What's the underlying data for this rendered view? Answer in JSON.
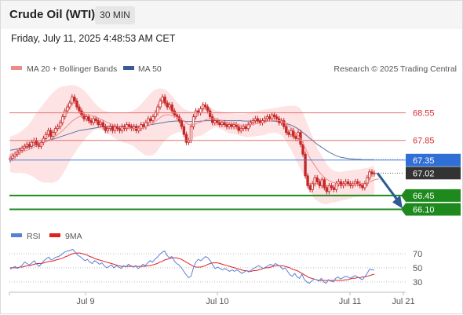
{
  "header": {
    "instrument": "Crude Oil (WTI)",
    "timeframe": "30 MIN",
    "datetime": "Friday, July 11, 2025 4:48:53 AM CET"
  },
  "legend": {
    "ma20": "MA 20 + Bollinger Bands",
    "ma50": "MA 50",
    "copyright": "Research © 2025 Trading Central",
    "rsi": "RSI",
    "ma9": "9MA"
  },
  "colors": {
    "bollinger_fill": "#fde3e3",
    "ma20": "#f08a8a",
    "ma50": "#5a73a8",
    "candle": "#c62828",
    "resistance": "#e57373",
    "pivot": "#4a7fd9",
    "support": "#1e8a1e",
    "last_price": "#333333",
    "arrow": "#2d5b94",
    "rsi": "#5b7fd6",
    "rsi_ma": "#e02020"
  },
  "chart_data": {
    "type": "candlestick",
    "x_labels": [
      "Jul 9",
      "Jul 10",
      "Jul 11",
      "Jul 21"
    ],
    "ylim": [
      65.77,
      69.4
    ],
    "levels": [
      {
        "value": 68.55,
        "label": "68.55",
        "kind": "resistance"
      },
      {
        "value": 67.85,
        "label": "67.85",
        "kind": "resistance"
      },
      {
        "value": 67.35,
        "label": "67.35",
        "kind": "pivot"
      },
      {
        "value": 67.02,
        "label": "67.02",
        "kind": "last"
      },
      {
        "value": 66.45,
        "label": "66.45",
        "kind": "support"
      },
      {
        "value": 66.1,
        "label": "66.10",
        "kind": "support"
      }
    ],
    "close": [
      67.4,
      67.45,
      67.5,
      67.55,
      67.6,
      67.65,
      67.7,
      67.75,
      67.7,
      67.8,
      67.85,
      67.75,
      67.7,
      67.8,
      67.9,
      68.0,
      68.1,
      67.95,
      68.05,
      68.15,
      68.2,
      68.3,
      68.45,
      68.6,
      68.7,
      68.8,
      68.95,
      68.85,
      68.7,
      68.6,
      68.5,
      68.4,
      68.45,
      68.35,
      68.3,
      68.4,
      68.35,
      68.25,
      68.3,
      68.2,
      68.1,
      68.15,
      68.2,
      68.1,
      68.2,
      68.15,
      68.1,
      68.2,
      68.15,
      68.25,
      68.2,
      68.15,
      68.2,
      68.1,
      68.15,
      68.25,
      68.2,
      68.3,
      68.4,
      68.35,
      68.45,
      68.55,
      68.7,
      68.85,
      68.95,
      68.8,
      68.7,
      68.75,
      68.6,
      68.5,
      68.45,
      68.35,
      68.2,
      68.0,
      67.8,
      67.85,
      68.2,
      68.45,
      68.6,
      68.55,
      68.65,
      68.75,
      68.7,
      68.6,
      68.45,
      68.3,
      68.35,
      68.3,
      68.25,
      68.3,
      68.25,
      68.2,
      68.25,
      68.2,
      68.25,
      68.2,
      68.1,
      68.15,
      68.2,
      68.15,
      68.25,
      68.3,
      68.35,
      68.4,
      68.35,
      68.3,
      68.35,
      68.4,
      68.45,
      68.4,
      68.5,
      68.45,
      68.4,
      68.3,
      68.35,
      68.2,
      68.05,
      68.0,
      68.1,
      67.95,
      67.9,
      68.05,
      67.75,
      67.5,
      66.95,
      66.7,
      66.6,
      66.75,
      66.9,
      66.8,
      66.7,
      66.85,
      66.65,
      66.55,
      66.7,
      66.65,
      66.6,
      66.75,
      66.8,
      66.7,
      66.75,
      66.8,
      66.75,
      66.7,
      66.75,
      66.8,
      66.75,
      66.7,
      66.65,
      66.75,
      66.9,
      67.05,
      67.0,
      67.02
    ],
    "ma20": [
      67.5,
      67.5,
      67.51,
      67.52,
      67.54,
      67.56,
      67.58,
      67.6,
      67.62,
      67.65,
      67.68,
      67.71,
      67.73,
      67.75,
      67.78,
      67.82,
      67.86,
      67.88,
      67.92,
      67.96,
      68.0,
      68.05,
      68.1,
      68.16,
      68.22,
      68.28,
      68.34,
      68.38,
      68.42,
      68.45,
      68.47,
      68.48,
      68.49,
      68.49,
      68.48,
      68.47,
      68.45,
      68.42,
      68.39,
      68.36,
      68.33,
      68.3,
      68.28,
      68.25,
      68.23,
      68.21,
      68.2,
      68.18,
      68.17,
      68.17,
      68.16,
      68.16,
      68.16,
      68.15,
      68.15,
      68.16,
      68.17,
      68.19,
      68.22,
      68.25,
      68.29,
      68.33,
      68.38,
      68.43,
      68.47,
      68.49,
      68.5,
      68.5,
      68.48,
      68.46,
      68.44,
      68.41,
      68.38,
      68.34,
      68.29,
      68.25,
      68.24,
      68.25,
      68.27,
      68.29,
      68.31,
      68.34,
      68.37,
      68.39,
      68.4,
      68.4,
      68.4,
      68.39,
      68.37,
      68.35,
      68.33,
      68.31,
      68.29,
      68.28,
      68.27,
      68.26,
      68.25,
      68.24,
      68.24,
      68.23,
      68.24,
      68.25,
      68.26,
      68.27,
      68.28,
      68.29,
      68.3,
      68.31,
      68.33,
      68.34,
      68.35,
      68.36,
      68.36,
      68.35,
      68.34,
      68.31,
      68.27,
      68.22,
      68.17,
      68.11,
      68.04,
      67.97,
      67.88,
      67.78,
      67.65,
      67.52,
      67.4,
      67.3,
      67.21,
      67.12,
      67.04,
      66.97,
      66.91,
      66.86,
      66.83,
      66.8,
      66.78,
      66.76,
      66.74,
      66.72,
      66.71,
      66.71,
      66.72,
      66.73,
      66.74,
      66.74,
      66.74,
      66.75,
      66.76,
      66.77,
      66.78,
      66.79,
      66.82,
      66.85,
      66.86,
      66.87
    ],
    "bb_upper": [
      67.95,
      67.97,
      67.99,
      68.02,
      68.05,
      68.1,
      68.15,
      68.2,
      68.27,
      68.35,
      68.45,
      68.55,
      68.63,
      68.7,
      68.78,
      68.86,
      68.93,
      69.0,
      69.06,
      69.12,
      69.17,
      69.2,
      69.22,
      69.23,
      69.24,
      69.25,
      69.25,
      69.25,
      69.23,
      69.2,
      69.17,
      69.12,
      69.06,
      68.99,
      68.92,
      68.84,
      68.77,
      68.71,
      68.66,
      68.62,
      68.6,
      68.58,
      68.57,
      68.56,
      68.56,
      68.55,
      68.55,
      68.55,
      68.55,
      68.56,
      68.57,
      68.59,
      68.62,
      68.66,
      68.71,
      68.77,
      68.84,
      68.91,
      68.98,
      69.04,
      69.1,
      69.14,
      69.16,
      69.17,
      69.16,
      69.14,
      69.1,
      69.04,
      68.97,
      68.9,
      68.83,
      68.76,
      68.7,
      68.65,
      68.62,
      68.6,
      68.59,
      68.59,
      68.6,
      68.62,
      68.65,
      68.68,
      68.7,
      68.7,
      68.68,
      68.65,
      68.62,
      68.6,
      68.59,
      68.58,
      68.57,
      68.56,
      68.55,
      68.54,
      68.53,
      68.52,
      68.52,
      68.52,
      68.52,
      68.53,
      68.54,
      68.56,
      68.57,
      68.58,
      68.6,
      68.61,
      68.62,
      68.63,
      68.64,
      68.65,
      68.66,
      68.67,
      68.68,
      68.69,
      68.7,
      68.71,
      68.72,
      68.73,
      68.73,
      68.73,
      68.72,
      68.7,
      68.65,
      68.55,
      68.4,
      68.25,
      68.1,
      67.95,
      67.8,
      67.66,
      67.55,
      67.45,
      67.35,
      67.25,
      67.17,
      67.12,
      67.08,
      67.06,
      67.05,
      67.05,
      67.06,
      67.07,
      67.08,
      67.09,
      67.1,
      67.1,
      67.11,
      67.12,
      67.13,
      67.14,
      67.15,
      67.17,
      67.19,
      67.2
    ],
    "bb_lower": [
      67.05,
      67.03,
      67.03,
      67.02,
      67.03,
      67.02,
      67.01,
      67.0,
      66.97,
      66.95,
      66.91,
      66.87,
      66.83,
      66.8,
      66.78,
      66.78,
      66.79,
      66.76,
      66.78,
      66.8,
      66.83,
      66.9,
      66.98,
      67.09,
      67.2,
      67.31,
      67.43,
      67.51,
      67.61,
      67.7,
      67.77,
      67.84,
      67.92,
      67.99,
      68.04,
      68.1,
      68.13,
      68.13,
      68.12,
      68.1,
      68.06,
      68.02,
      67.99,
      67.94,
      67.9,
      67.87,
      67.85,
      67.81,
      67.79,
      67.78,
      67.75,
      67.73,
      67.7,
      67.64,
      67.59,
      67.55,
      67.5,
      67.47,
      67.46,
      67.46,
      67.48,
      67.52,
      67.6,
      67.69,
      67.78,
      67.84,
      67.9,
      67.96,
      67.99,
      68.02,
      68.05,
      68.06,
      68.06,
      68.03,
      67.96,
      67.9,
      67.89,
      67.91,
      67.94,
      67.96,
      67.97,
      68.0,
      68.04,
      68.08,
      68.12,
      68.15,
      68.18,
      68.18,
      68.15,
      68.12,
      68.09,
      68.06,
      68.03,
      68.02,
      68.01,
      68.0,
      67.98,
      67.96,
      67.96,
      67.93,
      67.94,
      67.94,
      67.95,
      67.96,
      67.96,
      67.97,
      67.98,
      67.99,
      68.02,
      68.03,
      68.04,
      68.05,
      68.04,
      68.01,
      67.98,
      67.91,
      67.82,
      67.71,
      67.61,
      67.49,
      67.36,
      67.24,
      67.11,
      67.01,
      66.86,
      66.7,
      66.55,
      66.44,
      66.35,
      66.32,
      66.28,
      66.25,
      66.23,
      66.23,
      66.25,
      66.27,
      66.28,
      66.29,
      66.3,
      66.32,
      66.33,
      66.34,
      66.36,
      66.38,
      66.4,
      66.41,
      66.41,
      66.42,
      66.43,
      66.44,
      66.45,
      66.46,
      66.47,
      66.48,
      66.49,
      66.5,
      66.51,
      66.52
    ],
    "ma50": [
      67.6,
      67.61,
      67.62,
      67.63,
      67.64,
      67.65,
      67.66,
      67.67,
      67.68,
      67.7,
      67.72,
      67.74,
      67.76,
      67.78,
      67.8,
      67.82,
      67.84,
      67.86,
      67.88,
      67.9,
      67.92,
      67.94,
      67.96,
      67.98,
      68.0,
      68.02,
      68.04,
      68.06,
      68.08,
      68.1,
      68.11,
      68.12,
      68.13,
      68.14,
      68.15,
      68.16,
      68.17,
      68.18,
      68.19,
      68.2,
      68.2,
      68.21,
      68.21,
      68.21,
      68.21,
      68.21,
      68.21,
      68.21,
      68.21,
      68.21,
      68.21,
      68.21,
      68.21,
      68.21,
      68.21,
      68.22,
      68.22,
      68.23,
      68.24,
      68.25,
      68.26,
      68.27,
      68.28,
      68.29,
      68.3,
      68.31,
      68.32,
      68.33,
      68.33,
      68.34,
      68.34,
      68.34,
      68.34,
      68.34,
      68.33,
      68.33,
      68.33,
      68.33,
      68.33,
      68.33,
      68.34,
      68.34,
      68.35,
      68.35,
      68.35,
      68.35,
      68.35,
      68.35,
      68.35,
      68.35,
      68.35,
      68.35,
      68.35,
      68.35,
      68.35,
      68.35,
      68.35,
      68.35,
      68.34,
      68.34,
      68.34,
      68.34,
      68.34,
      68.34,
      68.34,
      68.34,
      68.34,
      68.34,
      68.34,
      68.34,
      68.34,
      68.34,
      68.33,
      68.32,
      68.31,
      68.3,
      68.28,
      68.26,
      68.24,
      68.21,
      68.18,
      68.14,
      68.1,
      68.05,
      68.0,
      67.95,
      67.9,
      67.85,
      67.8,
      67.75,
      67.71,
      67.67,
      67.63,
      67.59,
      67.55,
      67.52,
      67.49,
      67.46,
      67.44,
      67.42,
      67.41,
      67.4,
      67.39,
      67.38,
      67.38,
      67.37,
      67.37,
      67.37,
      67.36,
      67.36,
      67.36,
      67.36,
      67.36,
      67.36
    ],
    "rsi": {
      "ticks": [
        70,
        50,
        30
      ],
      "ylim": [
        22,
        80
      ],
      "rsi": [
        48,
        50,
        52,
        49,
        51,
        54,
        58,
        56,
        54,
        57,
        60,
        55,
        52,
        56,
        60,
        63,
        65,
        61,
        63,
        65,
        66,
        68,
        71,
        73,
        74,
        75,
        76,
        72,
        68,
        66,
        63,
        60,
        62,
        58,
        56,
        60,
        58,
        55,
        57,
        53,
        50,
        52,
        54,
        50,
        53,
        51,
        49,
        53,
        51,
        55,
        53,
        51,
        53,
        49,
        51,
        55,
        53,
        57,
        60,
        58,
        62,
        65,
        69,
        72,
        74,
        68,
        64,
        66,
        60,
        56,
        54,
        50,
        45,
        40,
        36,
        38,
        50,
        58,
        62,
        60,
        63,
        66,
        64,
        60,
        54,
        49,
        51,
        49,
        47,
        49,
        47,
        45,
        47,
        45,
        47,
        45,
        42,
        44,
        46,
        44,
        47,
        49,
        51,
        53,
        51,
        49,
        51,
        53,
        55,
        53,
        56,
        54,
        52,
        48,
        50,
        45,
        40,
        38,
        42,
        37,
        35,
        41,
        33,
        30,
        28,
        31,
        34,
        33,
        31,
        35,
        30,
        28,
        33,
        31,
        30,
        35,
        37,
        34,
        36,
        38,
        37,
        35,
        37,
        39,
        37,
        35,
        33,
        37,
        42,
        48,
        47,
        47
      ],
      "ma9": [
        50,
        50,
        50,
        50,
        51,
        51,
        52,
        53,
        53,
        54,
        55,
        56,
        56,
        56,
        57,
        58,
        59,
        59,
        60,
        61,
        62,
        63,
        64,
        66,
        67,
        69,
        70,
        71,
        71,
        71,
        70,
        69,
        68,
        66,
        65,
        63,
        62,
        61,
        60,
        59,
        58,
        57,
        56,
        55,
        54,
        53,
        52,
        52,
        52,
        52,
        52,
        52,
        52,
        52,
        52,
        52,
        52,
        53,
        53,
        54,
        55,
        56,
        58,
        59,
        61,
        62,
        63,
        64,
        64,
        64,
        63,
        62,
        60,
        58,
        56,
        54,
        52,
        51,
        51,
        51,
        52,
        53,
        55,
        56,
        57,
        57,
        57,
        56,
        55,
        54,
        53,
        52,
        51,
        50,
        49,
        48,
        47,
        46,
        46,
        45,
        45,
        46,
        46,
        47,
        48,
        49,
        50,
        50,
        51,
        52,
        53,
        53,
        53,
        53,
        52,
        51,
        50,
        48,
        47,
        46,
        44,
        42,
        40,
        38,
        36,
        35,
        34,
        33,
        32,
        32,
        32,
        32,
        32,
        32,
        32,
        32,
        32,
        32,
        32,
        33,
        33,
        34,
        35,
        35,
        36,
        36,
        37,
        37,
        38,
        39,
        40,
        41
      ]
    }
  }
}
